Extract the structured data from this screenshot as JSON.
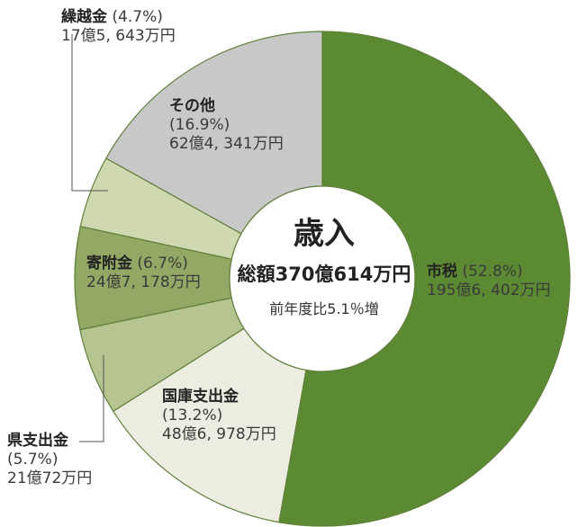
{
  "chart_data": {
    "type": "pie",
    "donut": true,
    "title": "歳入",
    "center_total": "総額370億614万円",
    "center_change": "前年度比5.1％増",
    "slices": [
      {
        "name": "市税",
        "percent": 52.8,
        "pct_label": "(52.8%)",
        "amount": "195億6, 402万円",
        "color": "#5b8a32"
      },
      {
        "name": "国庫支出金",
        "percent": 13.2,
        "pct_label": "(13.2%)",
        "amount": "48億6, 978万円",
        "color": "#ecece0"
      },
      {
        "name": "県支出金",
        "percent": 5.7,
        "pct_label": "(5.7%)",
        "amount": "21億72万円",
        "color": "#b5c490"
      },
      {
        "name": "寄附金",
        "percent": 6.7,
        "pct_label": "(6.7%)",
        "amount": "24億7, 178万円",
        "color": "#93a865"
      },
      {
        "name": "繰越金",
        "percent": 4.7,
        "pct_label": "(4.7%)",
        "amount": "17億5, 643万円",
        "color": "#cfd8b0"
      },
      {
        "name": "その他",
        "percent": 16.9,
        "pct_label": "(16.9%)",
        "amount": "62億4, 341万円",
        "color": "#c8c8c8"
      }
    ]
  }
}
